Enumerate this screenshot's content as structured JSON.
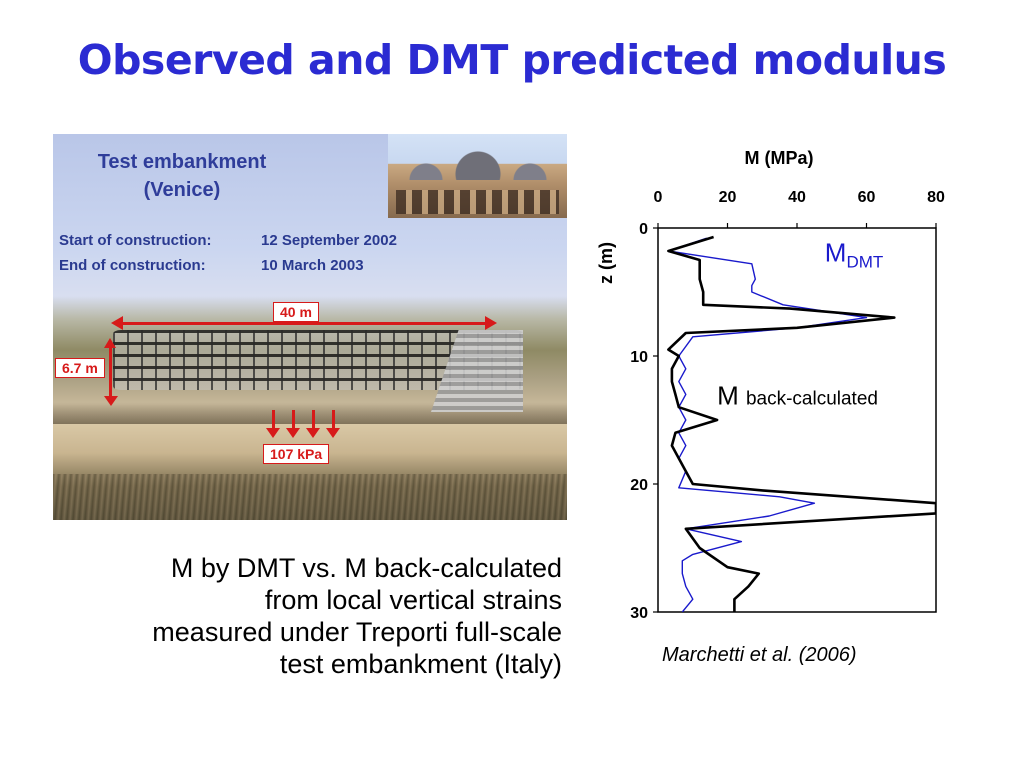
{
  "slide": {
    "title": "Observed and DMT predicted modulus",
    "caption_lines": [
      "M by DMT vs. M back-calculated",
      "from local vertical strains",
      "measured under Treporti full-scale",
      "test embankment (Italy)"
    ],
    "citation": "Marchetti et al. (2006)"
  },
  "photo": {
    "title_line1": "Test embankment",
    "title_line2": "(Venice)",
    "start_label": "Start of construction:",
    "start_value": "12 September 2002",
    "end_label": "End of construction:",
    "end_value": "10 March 2003",
    "width_label": "40 m",
    "height_label": "6.7 m",
    "load_label": "107 kPa"
  },
  "colors": {
    "title": "#2B2BD2",
    "m_dmt": "#1a1acc",
    "m_back": "#000000",
    "annotation_red": "#d71a1a"
  },
  "chart_data": {
    "type": "line",
    "xlabel": "M (MPa)",
    "ylabel": "z (m)",
    "x_axis_position": "top",
    "y_axis_inverted": true,
    "xlim": [
      0,
      80
    ],
    "ylim": [
      0,
      30
    ],
    "xticks": [
      0,
      20,
      40,
      60,
      80
    ],
    "yticks": [
      0,
      10,
      20,
      30
    ],
    "grid": false,
    "series": [
      {
        "name": "M DMT",
        "label_main": "M",
        "label_sub": "DMT",
        "color": "#1a1acc",
        "points": [
          [
            14,
            0.8
          ],
          [
            3,
            1.8
          ],
          [
            27,
            2.8
          ],
          [
            28,
            4.0
          ],
          [
            27,
            4.5
          ],
          [
            27,
            5.0
          ],
          [
            36,
            6.0
          ],
          [
            60,
            7.0
          ],
          [
            40,
            7.8
          ],
          [
            10,
            8.5
          ],
          [
            6,
            10.0
          ],
          [
            8,
            11.0
          ],
          [
            6,
            12.0
          ],
          [
            8,
            13.0
          ],
          [
            6,
            14.0
          ],
          [
            8,
            15.0
          ],
          [
            6,
            16.0
          ],
          [
            8,
            17.0
          ],
          [
            6,
            18.0
          ],
          [
            8,
            19.0
          ],
          [
            6,
            20.3
          ],
          [
            35,
            21.0
          ],
          [
            45,
            21.5
          ],
          [
            32,
            22.5
          ],
          [
            8,
            23.5
          ],
          [
            24,
            24.5
          ],
          [
            10,
            25.5
          ],
          [
            7,
            26.0
          ],
          [
            7,
            27.0
          ],
          [
            8,
            28.0
          ],
          [
            10,
            29.0
          ],
          [
            7,
            30.0
          ]
        ]
      },
      {
        "name": "M back-calculated",
        "label_main": "M",
        "label_sub": "back-calculated",
        "color": "#000000",
        "points": [
          [
            16,
            0.7
          ],
          [
            3,
            1.8
          ],
          [
            12,
            2.5
          ],
          [
            12,
            4.0
          ],
          [
            13,
            5.0
          ],
          [
            13,
            6.0
          ],
          [
            38,
            6.3
          ],
          [
            68,
            7.0
          ],
          [
            40,
            7.8
          ],
          [
            8,
            8.2
          ],
          [
            3,
            9.5
          ],
          [
            6,
            10.0
          ],
          [
            4,
            11.0
          ],
          [
            4,
            12.0
          ],
          [
            5,
            13.0
          ],
          [
            6,
            14.0
          ],
          [
            17,
            15.0
          ],
          [
            5,
            16.0
          ],
          [
            4,
            17.0
          ],
          [
            6,
            18.0
          ],
          [
            8,
            19.0
          ],
          [
            10,
            20.0
          ],
          [
            30,
            20.5
          ],
          [
            80,
            21.5
          ],
          [
            80,
            22.3
          ],
          [
            8,
            23.5
          ],
          [
            12,
            25.0
          ],
          [
            20,
            26.5
          ],
          [
            29,
            27.0
          ],
          [
            26,
            28.0
          ],
          [
            22,
            29.0
          ],
          [
            22,
            30.0
          ]
        ]
      }
    ]
  }
}
